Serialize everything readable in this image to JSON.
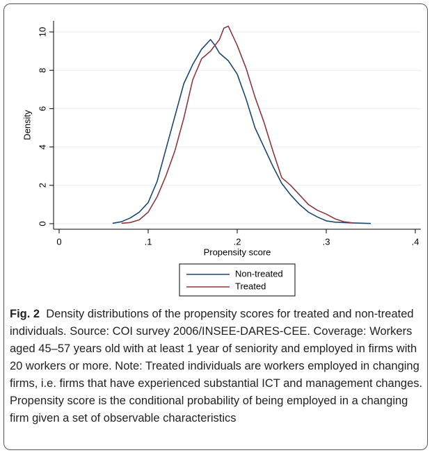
{
  "chart_data": {
    "type": "line",
    "xlabel": "Propensity score",
    "ylabel": "Density",
    "xlim": [
      0,
      0.4
    ],
    "ylim": [
      0,
      10
    ],
    "xticks": [
      0,
      {
        "value": 0.1,
        "label": ".1"
      },
      {
        "value": 0.2,
        "label": ".2"
      },
      {
        "value": 0.3,
        "label": ".3"
      },
      {
        "value": 0.4,
        "label": ".4"
      }
    ],
    "yticks": [
      0,
      2,
      4,
      6,
      8,
      10
    ],
    "grid": true,
    "legend": "bottom",
    "series": [
      {
        "name": "Non-treated",
        "color": "#1a476f",
        "x": [
          0.06,
          0.07,
          0.08,
          0.09,
          0.1,
          0.11,
          0.12,
          0.13,
          0.14,
          0.15,
          0.16,
          0.17,
          0.175,
          0.18,
          0.19,
          0.2,
          0.21,
          0.22,
          0.23,
          0.24,
          0.25,
          0.26,
          0.27,
          0.28,
          0.29,
          0.3,
          0.31,
          0.33,
          0.35
        ],
        "values": [
          0.02,
          0.1,
          0.3,
          0.6,
          1.1,
          2.2,
          3.9,
          5.6,
          7.3,
          8.3,
          9.1,
          9.6,
          9.3,
          8.9,
          8.5,
          7.8,
          6.5,
          5.0,
          4.0,
          3.0,
          2.1,
          1.5,
          1.0,
          0.6,
          0.35,
          0.15,
          0.08,
          0.04,
          0.01
        ]
      },
      {
        "name": "Treated",
        "color": "#90353b",
        "x": [
          0.07,
          0.08,
          0.09,
          0.1,
          0.11,
          0.12,
          0.13,
          0.14,
          0.15,
          0.16,
          0.17,
          0.18,
          0.185,
          0.19,
          0.2,
          0.21,
          0.22,
          0.23,
          0.24,
          0.25,
          0.26,
          0.27,
          0.28,
          0.29,
          0.3,
          0.31,
          0.32,
          0.33
        ],
        "values": [
          0.02,
          0.06,
          0.2,
          0.6,
          1.4,
          2.5,
          3.8,
          5.5,
          7.5,
          8.6,
          9.0,
          9.6,
          10.2,
          10.3,
          9.3,
          8.1,
          6.6,
          5.3,
          3.8,
          2.4,
          2.0,
          1.5,
          1.0,
          0.7,
          0.5,
          0.25,
          0.1,
          0.04
        ]
      }
    ]
  },
  "figure_label": "Fig. 2",
  "caption": "Density distributions of the propensity scores for treated and non-treated individuals. Source: COI survey 2006/INSEE-DARES-CEE. Coverage: Workers aged 45–57 years old with at least 1 year of seniority and employed in firms with 20 workers or more. Note: Treated individuals are workers employed in changing firms, i.e. firms that have experienced substantial ICT and management changes. Propensity score is the conditional probability of being employed in a changing firm given a set of observable characteristics"
}
